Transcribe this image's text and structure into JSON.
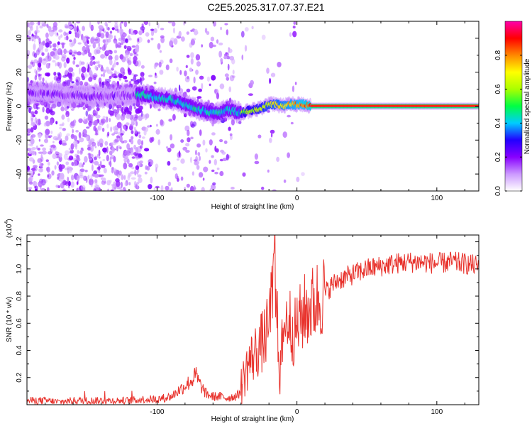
{
  "title": "C2E5.2025.317.07.37.E21",
  "colors": {
    "snr_line": "#e8322c",
    "axis": "#000000",
    "colorbar": [
      "#ffffff",
      "#cc99ff",
      "#8800ff",
      "#2200ff",
      "#00ccff",
      "#00ff44",
      "#aaff00",
      "#ffff00",
      "#ff8800",
      "#ff0000",
      "#ff00aa"
    ]
  },
  "chart_data": [
    {
      "type": "heatmap",
      "title": "",
      "xlabel": "Height of straight line (km)",
      "ylabel": "Frequency (Hz)",
      "xlim": [
        -193,
        130
      ],
      "ylim": [
        -50,
        50
      ],
      "xticks": [
        -100,
        0,
        100
      ],
      "xtick_labels": [
        "-100",
        "0",
        "100"
      ],
      "yticks": [
        40,
        20,
        0,
        -20,
        -40
      ],
      "ytick_labels": [
        "40",
        "20",
        "0",
        "-20",
        "-40"
      ],
      "colorbar": {
        "label": "Normalized spectral amplitude",
        "range": [
          0,
          1
        ],
        "ticks": [
          0.0,
          0.2,
          0.4,
          0.6,
          0.8
        ],
        "tick_labels": [
          "0.0",
          "0.2",
          "0.4",
          "0.6",
          "0.8"
        ]
      },
      "ridge": {
        "x": [
          -193,
          -170,
          -150,
          -130,
          -110,
          -100,
          -90,
          -80,
          -70,
          -60,
          -55,
          -50,
          -45,
          -40,
          -35,
          -30,
          -25,
          -20,
          -15,
          -10,
          -5,
          0,
          5,
          10,
          20,
          40,
          60,
          80,
          100,
          130
        ],
        "y": [
          8,
          7,
          6,
          6,
          7,
          5,
          4,
          1,
          -2,
          -4,
          -4,
          -2,
          -3,
          -4,
          -3,
          -2,
          -1,
          1,
          1,
          0,
          1,
          1,
          1,
          0,
          0,
          0,
          0,
          0,
          0,
          0
        ]
      },
      "noise_region_x": [
        -193,
        -55
      ]
    },
    {
      "type": "line",
      "title": "",
      "xlabel": "Height of straight line (km)",
      "ylabel": "SNR (10 * v/v)",
      "multiplier_label": "(x10",
      "multiplier_exp": "4",
      "multiplier_close": ")",
      "xlim": [
        -193,
        130
      ],
      "ylim": [
        0,
        1.25
      ],
      "xticks": [
        -100,
        0,
        100
      ],
      "xtick_labels": [
        "-100",
        "0",
        "100"
      ],
      "yticks": [
        0.2,
        0.4,
        0.6,
        0.8,
        1.0,
        1.2
      ],
      "ytick_labels": [
        "0.2",
        "0.4",
        "0.6",
        "0.8",
        "1.0",
        "1.2"
      ],
      "series": [
        {
          "name": "SNR",
          "x": [
            -193,
            -180,
            -170,
            -160,
            -150,
            -140,
            -130,
            -120,
            -110,
            -100,
            -90,
            -85,
            -80,
            -75,
            -72,
            -70,
            -65,
            -60,
            -55,
            -50,
            -45,
            -42,
            -40,
            -38,
            -35,
            -30,
            -25,
            -20,
            -18,
            -16,
            -14,
            -12,
            -10,
            -8,
            -6,
            -4,
            -2,
            0,
            5,
            10,
            15,
            20,
            25,
            30,
            40,
            50,
            60,
            70,
            80,
            90,
            100,
            110,
            120,
            130
          ],
          "y": [
            0.03,
            0.03,
            0.02,
            0.03,
            0.03,
            0.03,
            0.03,
            0.03,
            0.04,
            0.04,
            0.06,
            0.1,
            0.14,
            0.18,
            0.22,
            0.16,
            0.08,
            0.06,
            0.06,
            0.05,
            0.06,
            0.07,
            0.12,
            0.2,
            0.3,
            0.38,
            0.46,
            0.56,
            0.75,
            0.95,
            0.6,
            0.2,
            0.55,
            0.6,
            0.65,
            0.58,
            0.52,
            0.58,
            0.68,
            0.72,
            0.78,
            0.82,
            0.88,
            0.92,
            0.96,
            1.0,
            1.02,
            1.04,
            1.05,
            1.05,
            1.04,
            1.05,
            1.04,
            1.02
          ]
        }
      ]
    }
  ]
}
